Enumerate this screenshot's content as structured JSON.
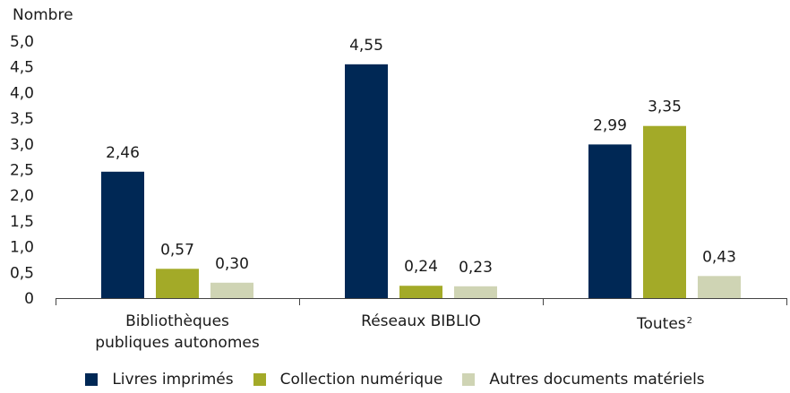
{
  "chart_data": {
    "type": "bar",
    "ylabel": "Nombre",
    "ylim": [
      0,
      5
    ],
    "yticks": [
      "0",
      "0,5",
      "1,0",
      "1,5",
      "2,0",
      "2,5",
      "3,0",
      "3,5",
      "4,0",
      "4,5",
      "5,0"
    ],
    "categories": [
      {
        "line1": "Bibliothèques",
        "line2": "publiques autonomes",
        "sup": ""
      },
      {
        "line1": "Réseaux BIBLIO",
        "line2": "",
        "sup": ""
      },
      {
        "line1": "Toutes",
        "line2": "",
        "sup": "2"
      }
    ],
    "series": [
      {
        "name": "Livres imprimés",
        "color": "#002855",
        "values": [
          2.46,
          4.55,
          2.99
        ],
        "labels": [
          "2,46",
          "4,55",
          "2,99"
        ]
      },
      {
        "name": "Collection numérique",
        "color": "#a3aa28",
        "values": [
          0.57,
          0.24,
          3.35
        ],
        "labels": [
          "0,57",
          "0,24",
          "3,35"
        ]
      },
      {
        "name": "Autres documents matériels",
        "color": "#cfd4b4",
        "values": [
          0.3,
          0.23,
          0.43
        ],
        "labels": [
          "0,30",
          "0,23",
          "0,43"
        ]
      }
    ],
    "legend_position": "bottom",
    "grid": false
  }
}
